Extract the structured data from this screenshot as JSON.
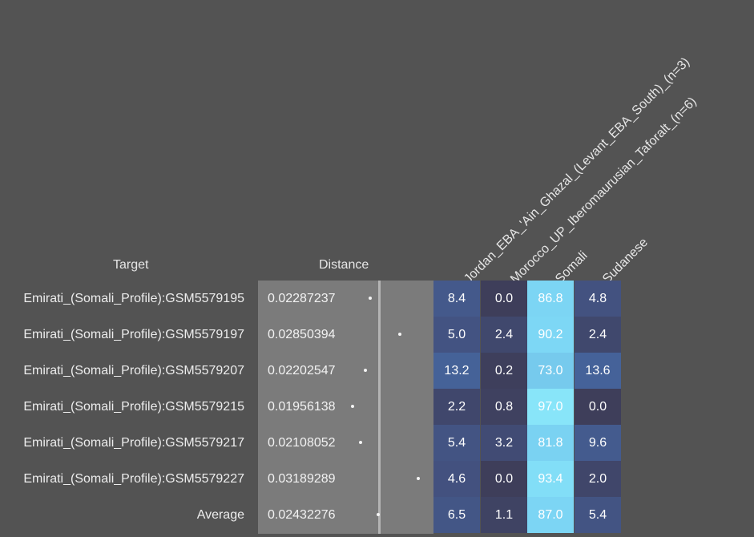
{
  "headers": {
    "target": "Target",
    "distance": "Distance"
  },
  "chart_data": {
    "type": "heatmap",
    "columns": [
      "Jordan_EBA_'Ain_Ghazal_(Levant_EBA_South)_(n=3)",
      "Morocco_UP_Iberomaurusian_Taforalt_(n=6)",
      "Somali",
      "Sudanese"
    ],
    "rows": [
      {
        "target": "Emirati_(Somali_Profile):GSM5579195",
        "distance": "0.02287237",
        "values": [
          "8.4",
          "0.0",
          "86.8",
          "4.8"
        ]
      },
      {
        "target": "Emirati_(Somali_Profile):GSM5579197",
        "distance": "0.02850394",
        "values": [
          "5.0",
          "2.4",
          "90.2",
          "2.4"
        ]
      },
      {
        "target": "Emirati_(Somali_Profile):GSM5579207",
        "distance": "0.02202547",
        "values": [
          "13.2",
          "0.2",
          "73.0",
          "13.6"
        ]
      },
      {
        "target": "Emirati_(Somali_Profile):GSM5579215",
        "distance": "0.01956138",
        "values": [
          "2.2",
          "0.8",
          "97.0",
          "0.0"
        ]
      },
      {
        "target": "Emirati_(Somali_Profile):GSM5579217",
        "distance": "0.02108052",
        "values": [
          "5.4",
          "3.2",
          "81.8",
          "9.6"
        ]
      },
      {
        "target": "Emirati_(Somali_Profile):GSM5579227",
        "distance": "0.03189289",
        "values": [
          "4.6",
          "0.0",
          "93.4",
          "2.0"
        ]
      },
      {
        "target": "Average",
        "distance": "0.02432276",
        "values": [
          "6.5",
          "1.1",
          "87.0",
          "5.4"
        ]
      }
    ]
  }
}
